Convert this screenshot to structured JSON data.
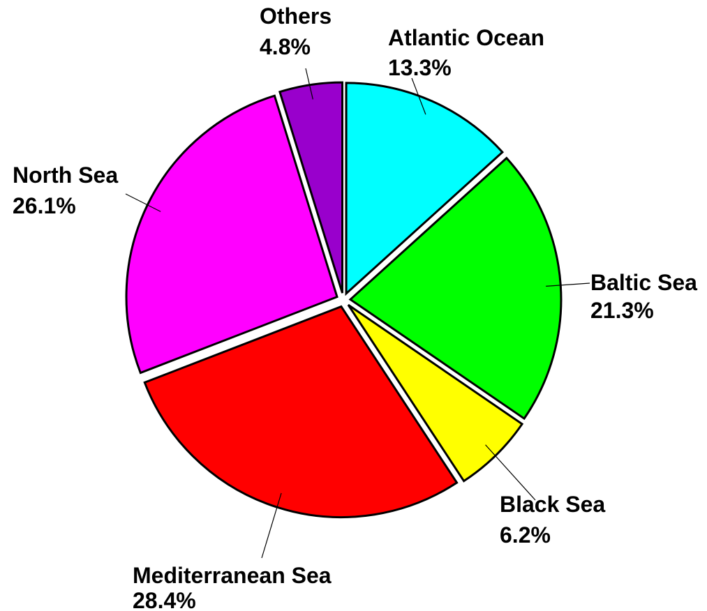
{
  "chart_data": {
    "type": "pie",
    "title": "",
    "slices": [
      {
        "name": "Atlantic Ocean",
        "value": 13.3,
        "label": "13.3%",
        "color": "#00FFFF"
      },
      {
        "name": "Baltic Sea",
        "value": 21.3,
        "label": "21.3%",
        "color": "#00FF00"
      },
      {
        "name": "Black Sea",
        "value": 6.2,
        "label": "6.2%",
        "color": "#FFFF00"
      },
      {
        "name": "Mediterranean Sea",
        "value": 28.4,
        "label": "28.4%",
        "color": "#FF0000"
      },
      {
        "name": "North Sea",
        "value": 26.1,
        "label": "26.1%",
        "color": "#FF00FF"
      },
      {
        "name": "Others",
        "value": 4.8,
        "label": "4.8%",
        "color": "#9900CC"
      }
    ],
    "start_angle": "12 o'clock",
    "direction": "clockwise",
    "exploded": true,
    "legend": "none"
  }
}
